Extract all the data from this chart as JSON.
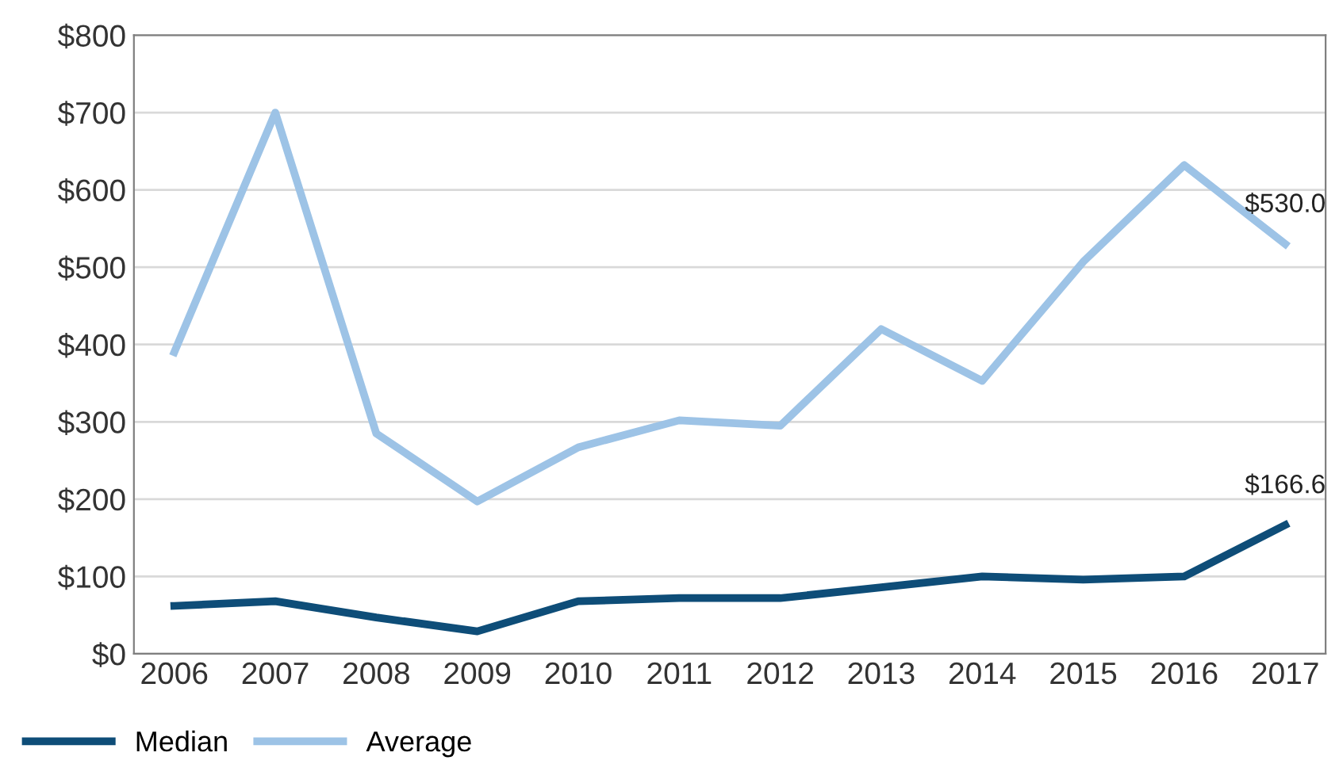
{
  "chart_data": {
    "type": "line",
    "categories": [
      "2006",
      "2007",
      "2008",
      "2009",
      "2010",
      "2011",
      "2012",
      "2013",
      "2014",
      "2015",
      "2016",
      "2017"
    ],
    "series": [
      {
        "name": "Median",
        "color": "#0e4d78",
        "values": [
          62,
          68,
          47,
          29,
          68,
          72,
          72,
          86,
          100,
          96,
          100,
          166.6
        ],
        "value_labels": [
          null,
          null,
          null,
          null,
          null,
          null,
          null,
          null,
          null,
          null,
          null,
          "$166.6"
        ]
      },
      {
        "name": "Average",
        "color": "#9dc3e6",
        "values": [
          390,
          700,
          285,
          197,
          267,
          302,
          295,
          420,
          353,
          507,
          632,
          530.0
        ],
        "value_labels": [
          null,
          null,
          null,
          null,
          null,
          null,
          null,
          null,
          null,
          null,
          null,
          "$530.0"
        ]
      }
    ],
    "ylim": [
      0,
      800
    ],
    "yticks": [
      {
        "value": 0,
        "label": "$0"
      },
      {
        "value": 100,
        "label": "$100"
      },
      {
        "value": 200,
        "label": "$200"
      },
      {
        "value": 300,
        "label": "$300"
      },
      {
        "value": 400,
        "label": "$400"
      },
      {
        "value": 500,
        "label": "$500"
      },
      {
        "value": 600,
        "label": "$600"
      },
      {
        "value": 700,
        "label": "$700"
      },
      {
        "value": 800,
        "label": "$800"
      }
    ],
    "grid": "y",
    "legend": "bottom left",
    "marker": "none",
    "line_style": "solid"
  }
}
